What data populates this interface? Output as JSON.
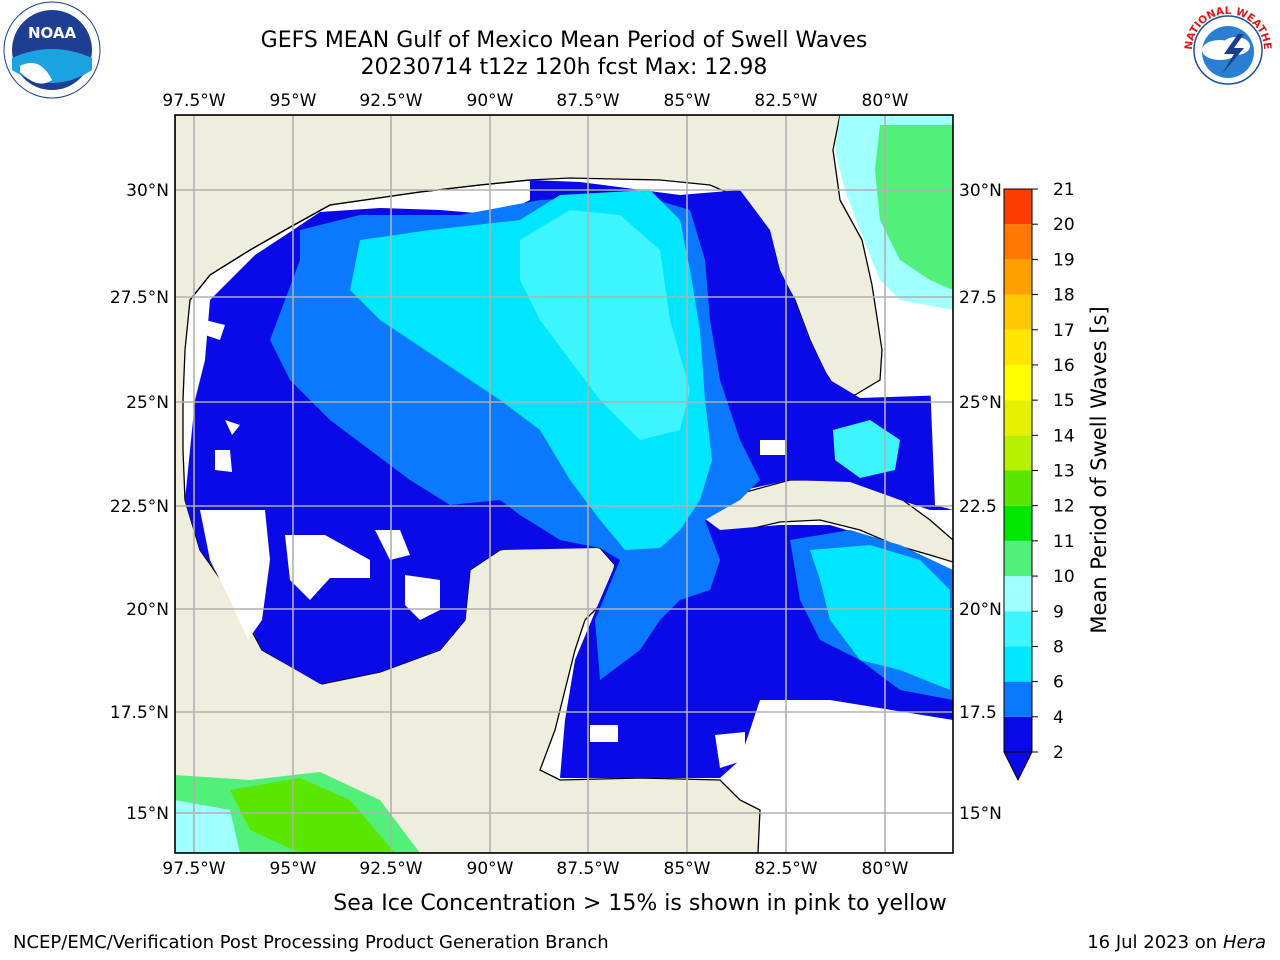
{
  "title": {
    "line1": "GEFS MEAN Gulf of Mexico Mean Period of Swell Waves",
    "line2": "20230714 t12z 120h fcst   Max: 12.98"
  },
  "map": {
    "lon_labels": [
      "97.5°W",
      "95°W",
      "92.5°W",
      "90°W",
      "87.5°W",
      "85°W",
      "82.5°W",
      "80°W"
    ],
    "lat_labels_left": [
      "30°N",
      "27.5°N",
      "25°N",
      "22.5°N",
      "20°N",
      "17.5°N",
      "15°N"
    ],
    "lat_labels_right": [
      "30°N",
      "27.5",
      "25°N",
      "22.5",
      "20°N",
      "17.5",
      "15°N"
    ],
    "grid": true,
    "land_color": "#efeddd",
    "grid_color": "#b0b0b0"
  },
  "colorbar": {
    "label": "Mean Period of Swell Waves [s]",
    "ticks": [
      "2",
      "4",
      "6",
      "8",
      "9",
      "10",
      "11",
      "12",
      "13",
      "14",
      "15",
      "16",
      "17",
      "18",
      "19",
      "20",
      "21"
    ],
    "colors": [
      "#0a0ae8",
      "#0a78ff",
      "#00e6ff",
      "#3cf5ff",
      "#a0ffff",
      "#50f07a",
      "#00e600",
      "#5ae600",
      "#b4f000",
      "#e6f000",
      "#ffff00",
      "#ffe600",
      "#ffc800",
      "#ffa000",
      "#ff7800",
      "#ff3c00",
      "#ff0000"
    ],
    "under_color": "#0a0ae8"
  },
  "footer": {
    "note": "Sea Ice Concentration > 15% is shown in pink to yellow",
    "credit": "NCEP/EMC/Verification Post Processing Product Generation Branch",
    "date_prefix": "16 Jul 2023 on ",
    "machine": "Hera"
  },
  "logos": {
    "noaa_text": "NOAA",
    "nws_text": "NATIONAL WEATHER SERVICE"
  }
}
